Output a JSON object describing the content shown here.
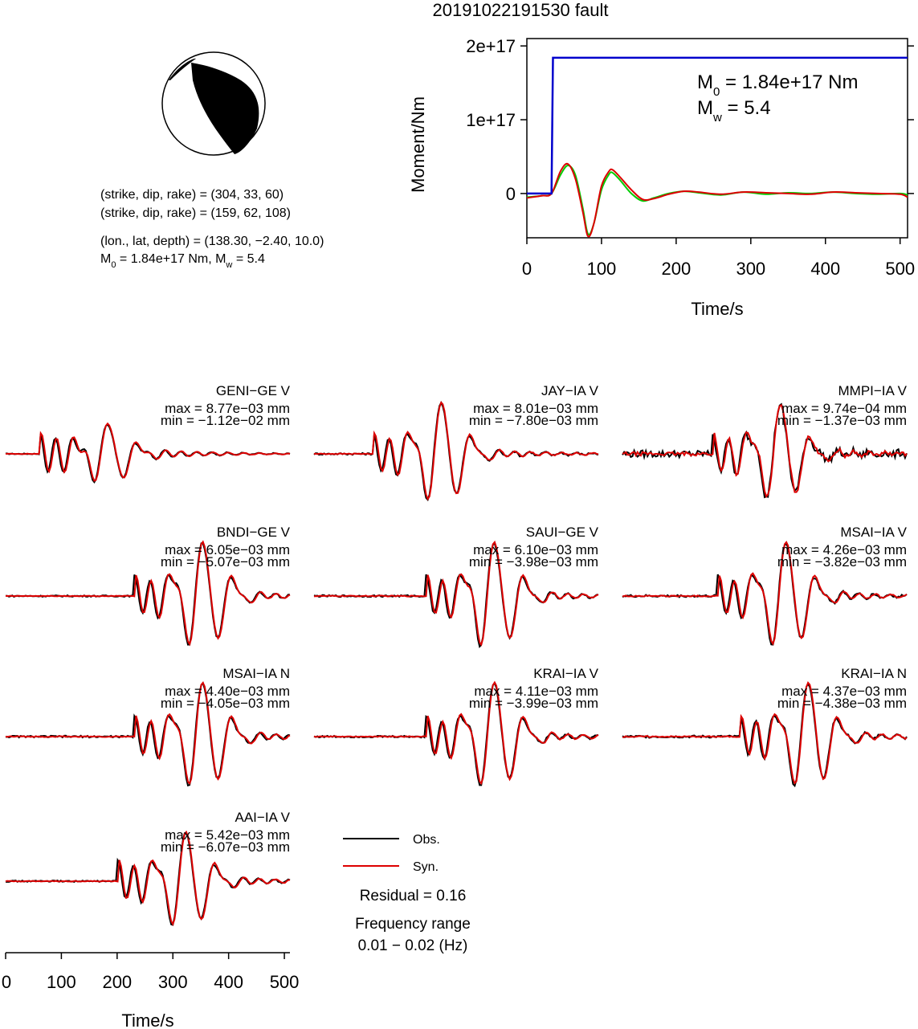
{
  "title": "20191022191530 fault",
  "beachball": {
    "planes": [
      {
        "strike": 304,
        "dip": 33,
        "rake": 60
      },
      {
        "strike": 159,
        "dip": 62,
        "rake": 108
      }
    ],
    "line1": "(strike, dip, rake) = (304, 33, 60)",
    "line2": "(strike, dip, rake) = (159, 62, 108)",
    "line3": "(lon., lat, depth) = (138.30, −2.40, 10.0)",
    "line4_prefix": "M",
    "line4_sub0": "0",
    "line4_mid": " = 1.84e+17 Nm, M",
    "line4_subw": "w",
    "line4_suffix": " = 5.4"
  },
  "chart_data": [
    {
      "type": "line",
      "name": "moment-function",
      "xlabel": "Time/s",
      "ylabel": "Moment/Nm",
      "xlim": [
        0,
        510
      ],
      "ylim": [
        -6e+16,
        2.1e+17
      ],
      "x_ticks": [
        0,
        100,
        200,
        300,
        400,
        500
      ],
      "x_tick_labels": [
        "0",
        "100",
        "200",
        "300",
        "400",
        "500"
      ],
      "y_ticks": [
        0,
        1e+17,
        2e+17
      ],
      "y_tick_labels": [
        "0",
        "1e+17",
        "2e+17"
      ],
      "m0_prefix": "M",
      "m0_sub": "0",
      "m0_value": " = 1.84e+17 Nm",
      "mw_prefix": "M",
      "mw_sub": "w",
      "mw_value": " = 5.4",
      "cumulative_moment": {
        "color": "#0000cc",
        "x": [
          0,
          33,
          35,
          510
        ],
        "y": [
          0,
          0,
          1.84e+17,
          1.84e+17
        ]
      },
      "moment_rate": [
        {
          "color": "#00cc00",
          "x": [
            0,
            20,
            33,
            45,
            55,
            65,
            75,
            82,
            90,
            100,
            110,
            115,
            125,
            140,
            155,
            170,
            190,
            210,
            230,
            260,
            290,
            320,
            350,
            380,
            410,
            440,
            470,
            500,
            510
          ],
          "y": [
            -5000000000000000.0,
            -3000000000000000.0,
            0,
            2.5e+16,
            3.8e+16,
            2.5e+16,
            -2e+16,
            -5.5e+16,
            -4e+16,
            5000000000000000.0,
            2.6e+16,
            2.8e+16,
            1.8e+16,
            0,
            -1e+16,
            -6000000000000000.0,
            0,
            3000000000000000.0,
            1000000000000000.0,
            -2000000000000000.0,
            2000000000000000.0,
            -1000000000000000.0,
            1000000000000000.0,
            0,
            2000000000000000.0,
            0,
            -1000000000000000.0,
            0,
            -2000000000000000.0
          ]
        },
        {
          "color": "#dd0000",
          "x": [
            0,
            20,
            33,
            45,
            55,
            65,
            75,
            82,
            90,
            100,
            110,
            115,
            125,
            140,
            155,
            170,
            190,
            210,
            230,
            260,
            290,
            320,
            350,
            380,
            410,
            440,
            470,
            500,
            510
          ],
          "y": [
            -6000000000000000.0,
            -3000000000000000.0,
            0,
            3e+16,
            4e+16,
            2e+16,
            -2.5e+16,
            -5.8e+16,
            -4e+16,
            1e+16,
            3e+16,
            3.2e+16,
            2.2e+16,
            5000000000000000.0,
            -8000000000000000.0,
            -7000000000000000.0,
            -1000000000000000.0,
            3000000000000000.0,
            2000000000000000.0,
            -1000000000000000.0,
            2000000000000000.0,
            1000000000000000.0,
            0,
            -1000000000000000.0,
            2000000000000000.0,
            1000000000000000.0,
            0,
            -1000000000000000.0,
            -5000000000000000.0
          ]
        }
      ]
    },
    {
      "type": "line",
      "name": "waveforms",
      "xlabel": "Time/s",
      "xlim": [
        0,
        510
      ],
      "x_ticks": [
        0,
        100,
        200,
        300,
        400,
        500
      ],
      "x_tick_labels": [
        "0",
        "100",
        "200",
        "300",
        "400",
        "500"
      ],
      "series_colors": {
        "obs": "#000000",
        "syn": "#dd0000"
      },
      "stations": [
        {
          "name": "GENI−GE V",
          "max": "max = 8.77e−03 mm",
          "min": "min = −1.12e−02 mm",
          "onset": 60,
          "amp": [
            0.55,
            -1.0
          ],
          "noise": 0.04
        },
        {
          "name": "JAY−IA V",
          "max": "max = 8.01e−03 mm",
          "min": "min = −7.80e−03 mm",
          "onset": 105,
          "amp": [
            0.95,
            -1.0
          ],
          "noise": 0.08
        },
        {
          "name": "MMPI−IA V",
          "max": "max = 9.74e−04 mm",
          "min": "min = −1.37e−03 mm",
          "onset": 160,
          "amp": [
            0.9,
            -1.0
          ],
          "noise": 0.3
        },
        {
          "name": "BNDI−GE V",
          "max": "max = 6.05e−03 mm",
          "min": "min = −5.07e−03 mm",
          "onset": 230,
          "amp": [
            1.0,
            -0.85
          ],
          "noise": 0.06
        },
        {
          "name": "SAUI−GE V",
          "max": "max = 6.10e−03 mm",
          "min": "min = −3.98e−03 mm",
          "onset": 200,
          "amp": [
            1.0,
            -0.7
          ],
          "noise": 0.08
        },
        {
          "name": "MSAI−IA V",
          "max": "max = 4.26e−03 mm",
          "min": "min = −3.82e−03 mm",
          "onset": 170,
          "amp": [
            1.0,
            -0.9
          ],
          "noise": 0.1
        },
        {
          "name": "MSAI−IA N",
          "max": "max = 4.40e−03 mm",
          "min": "min = −4.05e−03 mm",
          "onset": 230,
          "amp": [
            1.0,
            -0.95
          ],
          "noise": 0.08
        },
        {
          "name": "KRAI−IA V",
          "max": "max = 4.11e−03 mm",
          "min": "min = −3.99e−03 mm",
          "onset": 200,
          "amp": [
            1.0,
            -1.0
          ],
          "noise": 0.08
        },
        {
          "name": "KRAI−IA N",
          "max": "max = 4.37e−03 mm",
          "min": "min = −4.38e−03 mm",
          "onset": 210,
          "amp": [
            1.0,
            -1.0
          ],
          "noise": 0.1
        },
        {
          "name": "AAI−IA V",
          "max": "max = 5.42e−03 mm",
          "min": "min = −6.07e−03 mm",
          "onset": 200,
          "amp": [
            0.9,
            -1.0
          ],
          "noise": 0.06
        }
      ]
    }
  ],
  "legend": {
    "obs_label": "Obs.",
    "obs_color": "#000000",
    "syn_label": "Syn.",
    "syn_color": "#dd0000",
    "residual": "Residual = 0.16",
    "freq_label": "Frequency range",
    "freq_value": "0.01 − 0.02 (Hz)"
  }
}
